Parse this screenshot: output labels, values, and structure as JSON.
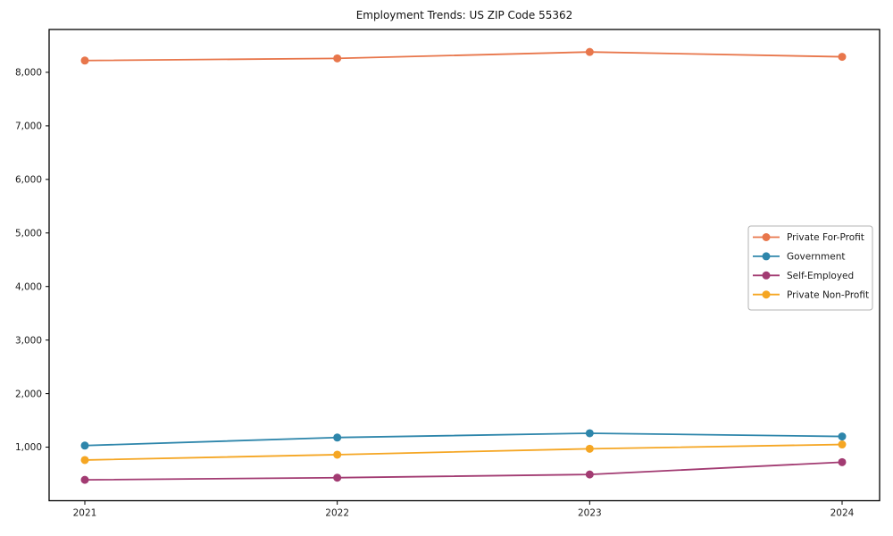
{
  "chart_data": {
    "type": "line",
    "title": "Employment Trends: US ZIP Code 55362",
    "x": [
      2021,
      2022,
      2023,
      2024
    ],
    "x_tick_labels": [
      "2021",
      "2022",
      "2023",
      "2024"
    ],
    "y_ticks": [
      {
        "value": 1000,
        "label": "1,000"
      },
      {
        "value": 2000,
        "label": "2,000"
      },
      {
        "value": 3000,
        "label": "3,000"
      },
      {
        "value": 4000,
        "label": "4,000"
      },
      {
        "value": 5000,
        "label": "5,000"
      },
      {
        "value": 6000,
        "label": "6,000"
      },
      {
        "value": 7000,
        "label": "7,000"
      },
      {
        "value": 8000,
        "label": "8,000"
      }
    ],
    "ylim": [
      0,
      8800
    ],
    "grid": false,
    "marker": "circle",
    "legend_position": "center-right",
    "series": [
      {
        "name": "Private For-Profit",
        "color": "#E8764B",
        "values": [
          8220,
          8260,
          8380,
          8290
        ]
      },
      {
        "name": "Government",
        "color": "#2E86AB",
        "values": [
          1030,
          1180,
          1260,
          1200
        ]
      },
      {
        "name": "Self-Employed",
        "color": "#A23B72",
        "values": [
          390,
          430,
          490,
          720
        ]
      },
      {
        "name": "Private Non-Profit",
        "color": "#F5A623",
        "values": [
          760,
          860,
          970,
          1050
        ]
      }
    ],
    "colors": {
      "axis": "#000000",
      "text": "#1a1a1a",
      "legend_border": "#b3b3b3",
      "background": "#ffffff"
    }
  }
}
